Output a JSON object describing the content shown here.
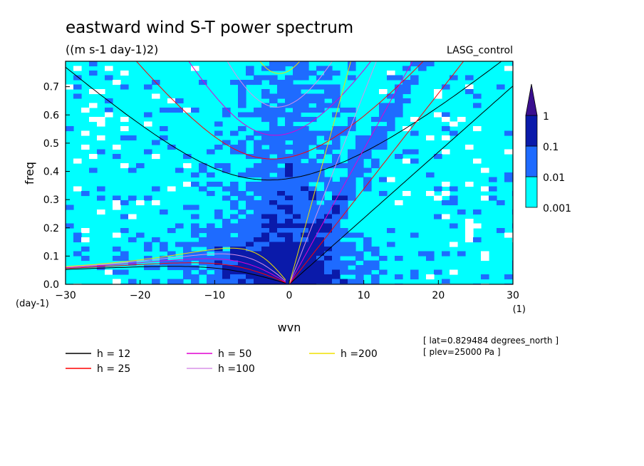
{
  "chart_data": {
    "type": "heatmap",
    "title": "eastward wind S-T power spectrum",
    "subtitle": "((m s-1 day-1)2)",
    "run_label": "LASG_control",
    "xlabel": "wvn",
    "ylabel": "freq",
    "x_unit": "(1)",
    "y_unit": "(day-1)",
    "xlim": [
      -30,
      30
    ],
    "ylim": [
      0,
      0.79
    ],
    "x_ticks": [
      "−30",
      "−20",
      "−10",
      "0",
      "10",
      "20",
      "30"
    ],
    "x_tick_values": [
      -30,
      -20,
      -10,
      0,
      10,
      20,
      30
    ],
    "y_ticks": [
      "0.0",
      "0.1",
      "0.2",
      "0.3",
      "0.4",
      "0.5",
      "0.6",
      "0.7"
    ],
    "y_tick_values": [
      0,
      0.1,
      0.2,
      0.3,
      0.4,
      0.5,
      0.6,
      0.7
    ],
    "colorbar": {
      "levels": [
        0.001,
        0.01,
        0.1,
        1
      ],
      "labels": [
        "0.001",
        "0.01",
        "0.1",
        "1"
      ],
      "colors": [
        "#ffffff",
        "#00ffff",
        "#1e6bff",
        "#0a1aaa",
        "#3a0f8f"
      ]
    },
    "dispersion_curves": [
      {
        "name": "h = 12",
        "h": 12,
        "color": "#000000"
      },
      {
        "name": "h = 25",
        "h": 25,
        "color": "#ff0000"
      },
      {
        "name": "h = 50",
        "h": 50,
        "color": "#e000d0"
      },
      {
        "name": "h =100",
        "h": 100,
        "color": "#d890e8"
      },
      {
        "name": "h =200",
        "h": 200,
        "color": "#f0e000"
      }
    ],
    "annotations": [
      "[ lat=0.829484 degrees_north ]",
      "[ plev=25000 Pa ]"
    ],
    "grid": false
  }
}
